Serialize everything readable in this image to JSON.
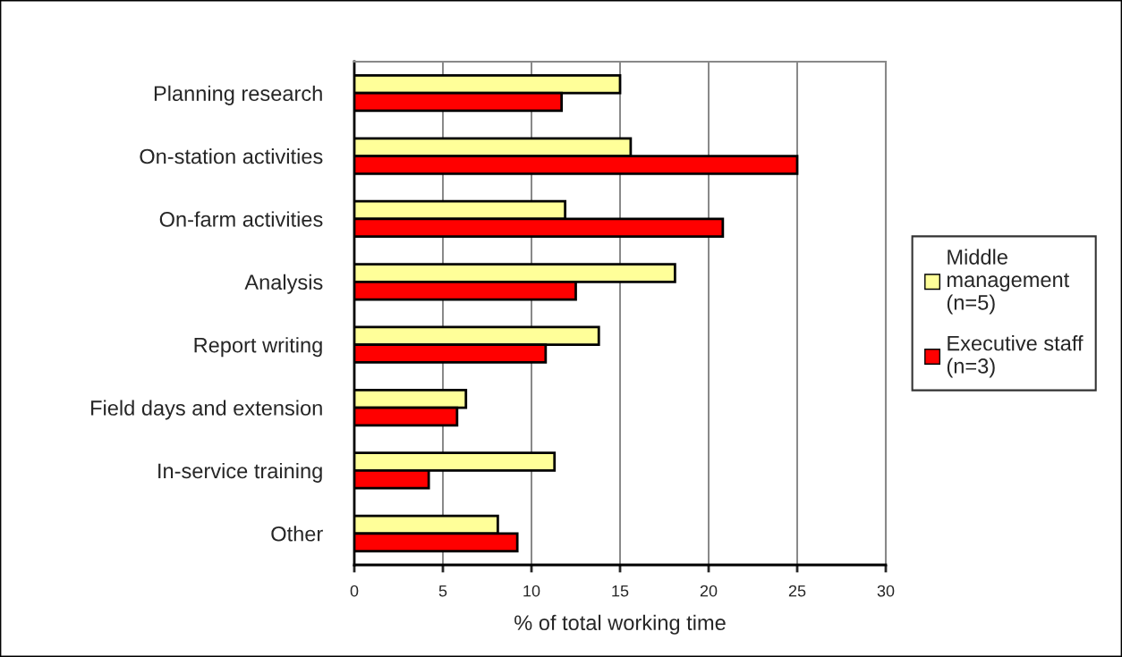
{
  "chart_data": {
    "type": "bar",
    "orientation": "horizontal",
    "xlabel": "% of total working time",
    "categories": [
      "Planning research",
      "On-station activities",
      "On-farm activities",
      "Analysis",
      "Report writing",
      "Field days and extension",
      "In-service training",
      "Other"
    ],
    "series": [
      {
        "name": "Middle\nmanagement\n(n=5)",
        "color": "#ffff99",
        "values": [
          15.0,
          15.6,
          11.9,
          18.1,
          13.8,
          6.3,
          11.3,
          8.1
        ]
      },
      {
        "name": "Executive staff\n(n=3)",
        "color": "#ff0000",
        "values": [
          11.7,
          25.0,
          20.8,
          12.5,
          10.8,
          5.8,
          4.2,
          9.2
        ]
      }
    ],
    "xlim": [
      0,
      30
    ],
    "xticks": [
      0,
      5,
      10,
      15,
      20,
      25,
      30
    ],
    "grid": "x",
    "legend": "right"
  }
}
